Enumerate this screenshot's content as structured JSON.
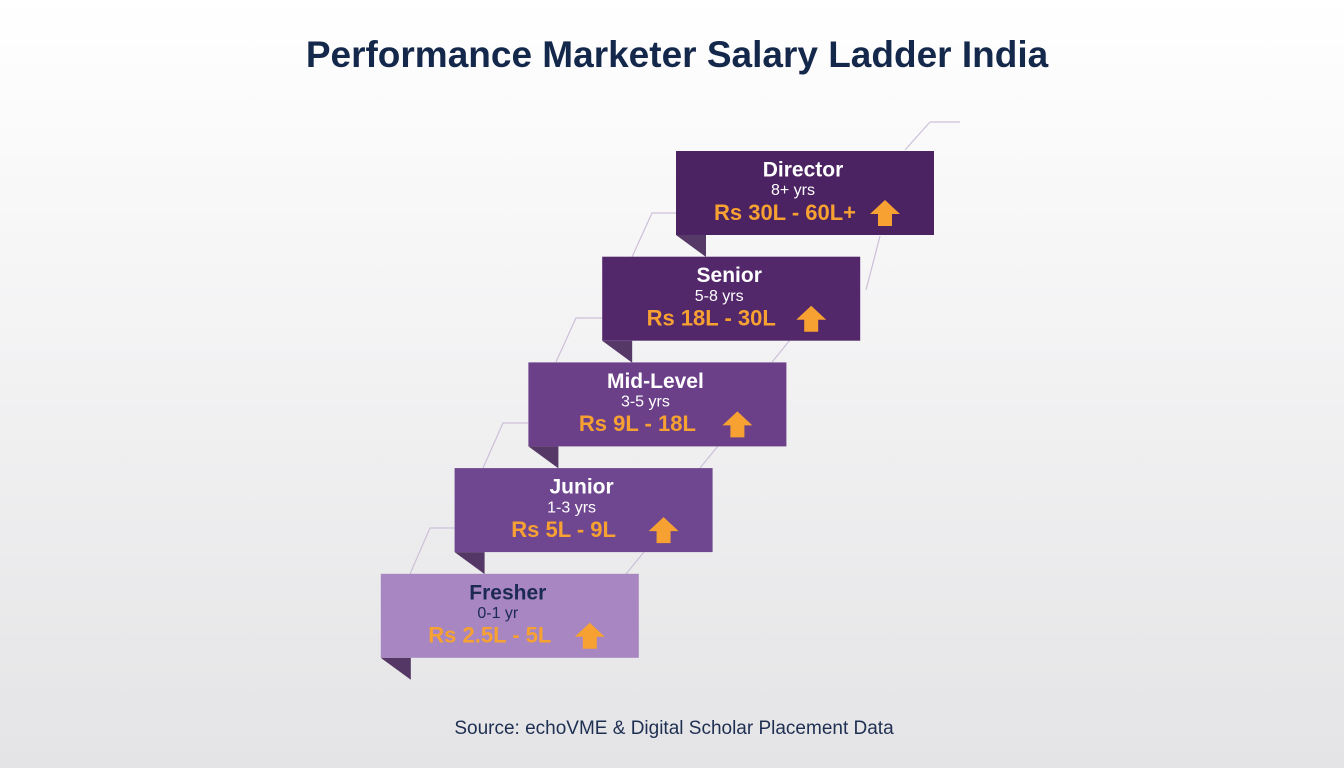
{
  "title": "Performance Marketer Salary Ladder India",
  "levels": [
    {
      "label": "Director",
      "years": "8+ yrs",
      "salary": "Rs 30L - 60L+",
      "color": "#4b2262"
    },
    {
      "label": "Senior",
      "years": "5-8 yrs",
      "salary": "Rs 18L - 30L",
      "color": "#53286b"
    },
    {
      "label": "Mid-Level",
      "years": "3-5 yrs",
      "salary": "Rs 9L - 18L",
      "color": "#6b4089"
    },
    {
      "label": "Junior",
      "years": "1-3 yrs",
      "salary": "Rs 5L - 9L",
      "color": "#6f4790"
    },
    {
      "label": "Fresher",
      "years": "0-1 yr",
      "salary": "Rs 2.5L - 5L",
      "color": "#a886c1"
    }
  ],
  "source": "Source: echoVME & Digital Scholar Placement Data"
}
